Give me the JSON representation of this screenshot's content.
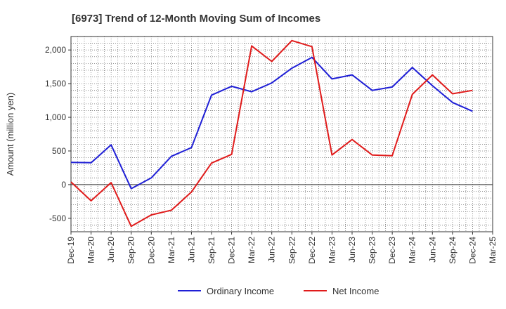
{
  "chart_data": {
    "type": "line",
    "title": "[6973]  Trend of 12-Month Moving Sum of Incomes",
    "xlabel": "",
    "ylabel": "Amount (million yen)",
    "ylim": [
      -700,
      2200
    ],
    "yticks": [
      -500,
      0,
      500,
      1000,
      1500,
      2000
    ],
    "ytick_labels": [
      "-500",
      "0",
      "500",
      "1,000",
      "1,500",
      "2,000"
    ],
    "grid": true,
    "legend_position": "bottom",
    "categories": [
      "Dec-19",
      "Mar-20",
      "Jun-20",
      "Sep-20",
      "Dec-20",
      "Mar-21",
      "Jun-21",
      "Sep-21",
      "Dec-21",
      "Mar-22",
      "Jun-22",
      "Sep-22",
      "Dec-22",
      "Mar-23",
      "Jun-23",
      "Sep-23",
      "Dec-23",
      "Mar-24",
      "Jun-24",
      "Sep-24",
      "Dec-24",
      "Mar-25"
    ],
    "series": [
      {
        "name": "Ordinary Income",
        "color": "#1f1fd6",
        "values": [
          330,
          325,
          590,
          -60,
          100,
          420,
          550,
          1330,
          1460,
          1380,
          1510,
          1730,
          1890,
          1570,
          1630,
          1400,
          1450,
          1740,
          1470,
          1220,
          1090,
          null
        ]
      },
      {
        "name": "Net Income",
        "color": "#e01b1b",
        "values": [
          40,
          -240,
          30,
          -620,
          -450,
          -380,
          -110,
          320,
          450,
          2060,
          1830,
          2140,
          2050,
          440,
          670,
          440,
          430,
          1340,
          1630,
          1350,
          1400,
          null
        ]
      }
    ]
  }
}
